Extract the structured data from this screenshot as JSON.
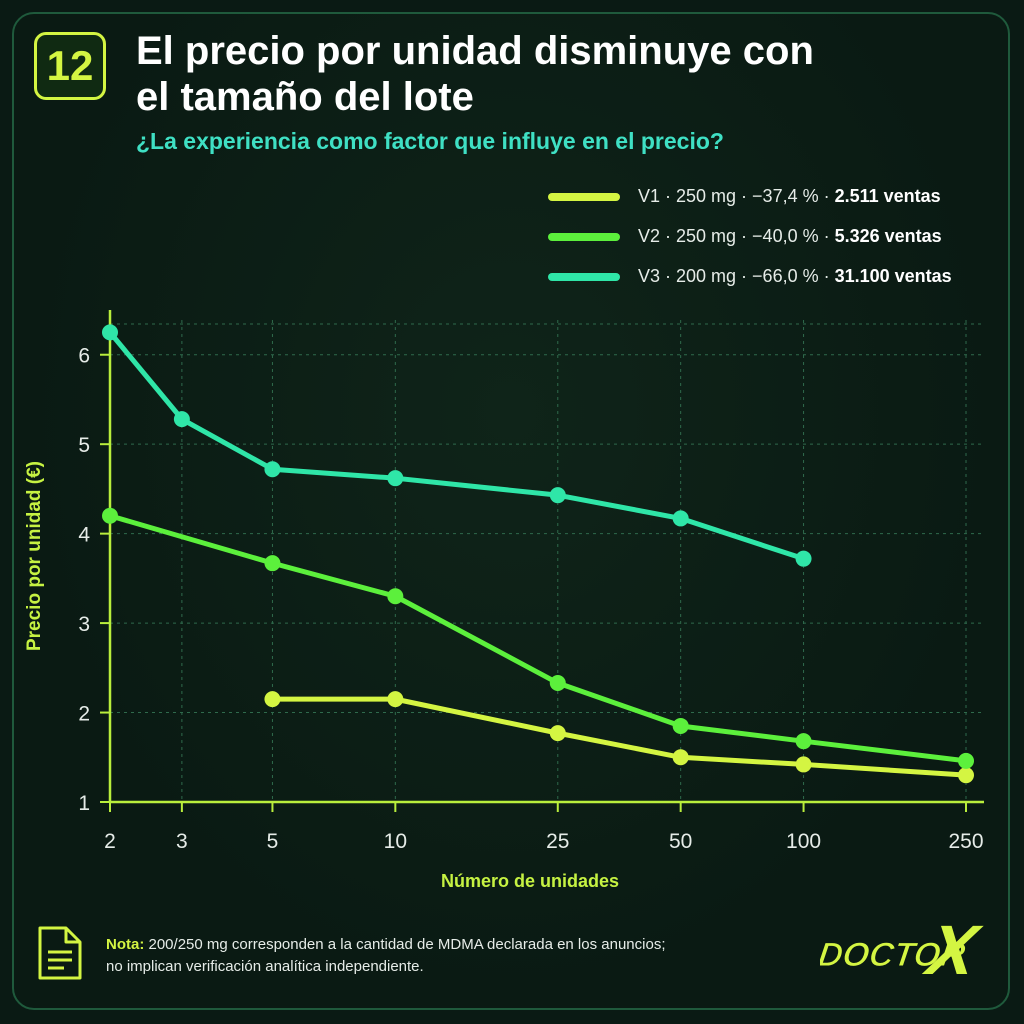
{
  "badge": "12",
  "title_line1": "El precio por unidad disminuye con",
  "title_line2": "el tamaño del lote",
  "subtitle": "¿La experiencia como factor que influye en el precio?",
  "legend": [
    {
      "prefix": "V1 · 250 mg · −37,4 % · ",
      "bold": "2.511 ventas",
      "color": "#d4f542"
    },
    {
      "prefix": "V2 · 250 mg · −40,0 % · ",
      "bold": "5.326 ventas",
      "color": "#5cf03c"
    },
    {
      "prefix": "V3 · 200 mg · −66,0 % · ",
      "bold": "31.100 ventas",
      "color": "#2fe6a8"
    }
  ],
  "chart_data": {
    "type": "line",
    "x_scale": "log",
    "x_ticks": [
      2,
      3,
      5,
      10,
      25,
      50,
      100,
      250
    ],
    "y_ticks": [
      1,
      2,
      3,
      4,
      5,
      6
    ],
    "xlim": [
      2,
      250
    ],
    "ylim": [
      1,
      6.5
    ],
    "xlabel": "Número de unidades",
    "ylabel": "Precio por unidad (€)",
    "grid": true,
    "series": [
      {
        "name": "V1",
        "color": "#d4f542",
        "x": [
          5,
          10,
          25,
          50,
          100,
          250
        ],
        "y": [
          2.15,
          2.15,
          1.77,
          1.5,
          1.42,
          1.3
        ]
      },
      {
        "name": "V2",
        "color": "#5cf03c",
        "x": [
          2,
          5,
          10,
          25,
          50,
          100,
          250
        ],
        "y": [
          4.2,
          3.67,
          3.3,
          2.33,
          1.85,
          1.68,
          1.46
        ]
      },
      {
        "name": "V3",
        "color": "#2fe6a8",
        "x": [
          2,
          3,
          5,
          10,
          25,
          50,
          100
        ],
        "y": [
          6.25,
          5.28,
          4.72,
          4.62,
          4.43,
          4.17,
          3.72
        ]
      }
    ]
  },
  "note": {
    "label": "Nota:",
    "line1": " 200/250 mg corresponden a la cantidad de MDMA declarada en los anuncios;",
    "line2": "no implican verificación analítica independiente."
  },
  "logo": {
    "text1": "DOCTOR",
    "text2": "X"
  },
  "icons": {
    "note": "document-icon"
  }
}
